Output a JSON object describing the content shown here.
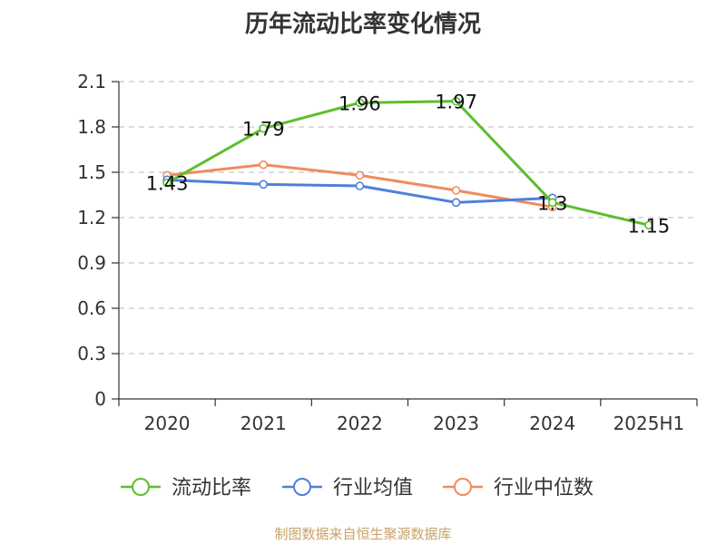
{
  "title": "历年流动比率变化情况",
  "footer": "制图数据来自恒生聚源数据库",
  "chart_data": {
    "type": "line",
    "categories": [
      "2020",
      "2021",
      "2022",
      "2023",
      "2024",
      "2025H1"
    ],
    "ylim": [
      0,
      2.1
    ],
    "yticks": [
      "0",
      "0.3",
      "0.6",
      "0.9",
      "1.2",
      "1.5",
      "1.8",
      "2.1"
    ],
    "grid": true,
    "legend_position": "bottom",
    "series": [
      {
        "name": "流动比率",
        "color": "#5cbe2e",
        "values": [
          1.43,
          1.79,
          1.96,
          1.97,
          1.3,
          1.15
        ],
        "data_labels": [
          "1.43",
          "1.79",
          "1.96",
          "1.97",
          "1.3",
          "1.15"
        ]
      },
      {
        "name": "行业均值",
        "color": "#4f80d9",
        "values": [
          1.45,
          1.42,
          1.41,
          1.3,
          1.33,
          null
        ]
      },
      {
        "name": "行业中位数",
        "color": "#f08c5c",
        "values": [
          1.48,
          1.55,
          1.48,
          1.38,
          1.27,
          null
        ]
      }
    ]
  }
}
